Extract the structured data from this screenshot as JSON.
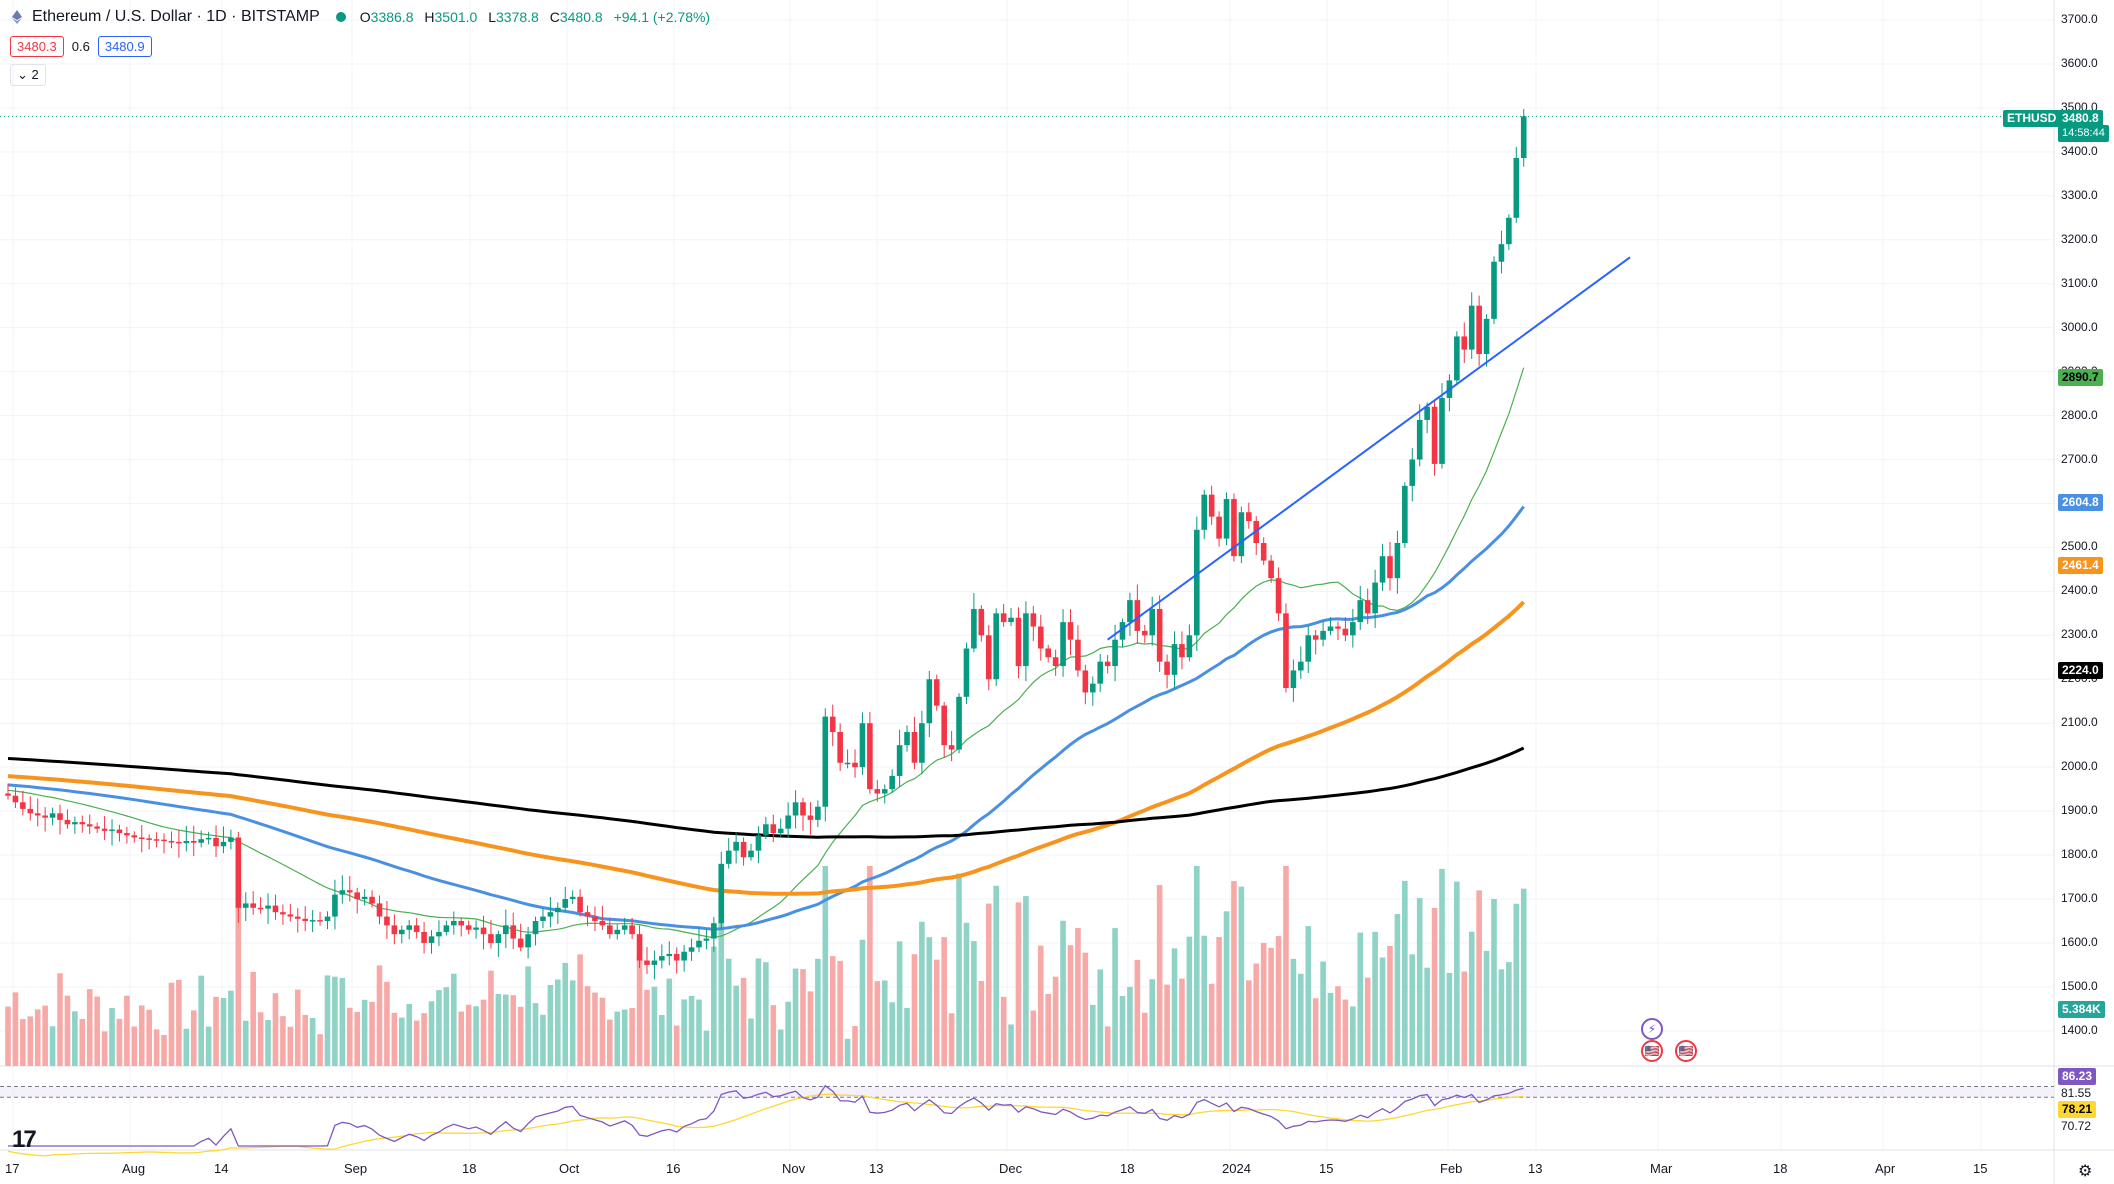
{
  "header": {
    "title": "Ethereum / U.S. Dollar · 1D · BITSTAMP",
    "ohlc": [
      {
        "k": "O",
        "v": "3386.8"
      },
      {
        "k": "H",
        "v": "3501.0"
      },
      {
        "k": "L",
        "v": "3378.8"
      },
      {
        "k": "C",
        "v": "3480.8"
      },
      {
        "k": "",
        "v": "+94.1 (+2.78%)"
      }
    ],
    "bid": "3480.3",
    "spread": "0.6",
    "ask": "3480.9",
    "indicators_toggle": "⌄ 2"
  },
  "price_axis": {
    "ticks": [
      "3700.0",
      "3600.0",
      "3500.0",
      "3400.0",
      "3300.0",
      "3200.0",
      "3100.0",
      "3000.0",
      "2900.0",
      "2800.0",
      "2700.0",
      "2600.0",
      "2500.0",
      "2400.0",
      "2300.0",
      "2200.0",
      "2100.0",
      "2000.0",
      "1900.0",
      "1800.0",
      "1700.0",
      "1600.0",
      "1500.0",
      "1400.0"
    ],
    "symbol_tag": "ETHUSD",
    "last_price": "3480.8",
    "countdown": "14:58:44",
    "ma_tags": [
      {
        "name": "ma-20",
        "value": "2890.7",
        "color": "#4caf50"
      },
      {
        "name": "ma-50",
        "value": "2604.8",
        "color": "#4a90e2"
      },
      {
        "name": "ma-100",
        "value": "2461.4",
        "color": "#f7941d"
      },
      {
        "name": "ma-200",
        "value": "2224.0",
        "color": "#000000"
      }
    ],
    "volume_tag": "5.384K"
  },
  "rsi_axis": {
    "rsi_value": "86.23",
    "level_upper": "81.55",
    "rsi_ma": "78.21",
    "level_lower": "70.72"
  },
  "time_axis": {
    "labels": [
      "17",
      "Aug",
      "14",
      "Sep",
      "18",
      "Oct",
      "16",
      "Nov",
      "13",
      "Dec",
      "18",
      "2024",
      "15",
      "Feb",
      "13",
      "Mar",
      "18",
      "Apr",
      "15"
    ]
  },
  "colors": {
    "up": "#089981",
    "down": "#f23645",
    "ma20": "#4caf50",
    "ma50": "#4a90e2",
    "ma100": "#f7941d",
    "ma200": "#000000",
    "rsi": "#7e57c2",
    "trendline": "#2962ff"
  },
  "icons": {
    "logo": "ethereum-icon",
    "tradingview": "tradingview-logo",
    "settings": "gear-icon",
    "event": "us-flag-icon",
    "bolt": "lightning-icon"
  },
  "chart_data": {
    "type": "candlestick",
    "title": "Ethereum / U.S. Dollar · 1D · BITSTAMP",
    "ylabel": "USD",
    "ylim": [
      1350,
      3750
    ],
    "start_close": 1940,
    "daily_closes": [
      1935,
      1920,
      1905,
      1895,
      1890,
      1885,
      1895,
      1880,
      1870,
      1875,
      1870,
      1865,
      1860,
      1855,
      1858,
      1850,
      1845,
      1840,
      1838,
      1836,
      1835,
      1832,
      1830,
      1827,
      1832,
      1828,
      1836,
      1839,
      1820,
      1830,
      1840,
      1680,
      1690,
      1680,
      1678,
      1685,
      1670,
      1665,
      1660,
      1655,
      1650,
      1652,
      1650,
      1660,
      1710,
      1720,
      1715,
      1700,
      1705,
      1690,
      1660,
      1640,
      1620,
      1630,
      1640,
      1625,
      1600,
      1615,
      1625,
      1640,
      1650,
      1640,
      1630,
      1635,
      1620,
      1600,
      1620,
      1640,
      1610,
      1590,
      1620,
      1650,
      1660,
      1670,
      1680,
      1700,
      1705,
      1670,
      1660,
      1650,
      1640,
      1620,
      1630,
      1640,
      1620,
      1560,
      1550,
      1560,
      1570,
      1575,
      1560,
      1580,
      1590,
      1605,
      1610,
      1645,
      1780,
      1810,
      1830,
      1795,
      1810,
      1845,
      1870,
      1850,
      1860,
      1890,
      1920,
      1890,
      1880,
      1910,
      2115,
      2080,
      2010,
      2010,
      2000,
      2100,
      1950,
      1940,
      1950,
      1980,
      2050,
      2080,
      2010,
      2100,
      2200,
      2140,
      2050,
      2040,
      2160,
      2270,
      2360,
      2300,
      2200,
      2350,
      2330,
      2340,
      2230,
      2350,
      2320,
      2270,
      2250,
      2230,
      2330,
      2290,
      2220,
      2170,
      2190,
      2240,
      2230,
      2290,
      2330,
      2380,
      2310,
      2300,
      2360,
      2240,
      2210,
      2280,
      2250,
      2300,
      2540,
      2620,
      2570,
      2520,
      2610,
      2480,
      2580,
      2560,
      2510,
      2470,
      2430,
      2350,
      2180,
      2220,
      2240,
      2300,
      2290,
      2310,
      2320,
      2315,
      2300,
      2330,
      2380,
      2350,
      2420,
      2480,
      2430,
      2510,
      2640,
      2700,
      2790,
      2820,
      2690,
      2840,
      2880,
      2980,
      2950,
      3050,
      2940,
      3020,
      3150,
      3190,
      3250,
      3386,
      3480.8
    ],
    "moving_averages": [
      {
        "name": "MA20",
        "last": 2890.7
      },
      {
        "name": "MA50",
        "last": 2604.8
      },
      {
        "name": "MA100",
        "last": 2461.4
      },
      {
        "name": "MA200",
        "last": 2224.0
      }
    ],
    "volume_last": "5.384K",
    "rsi": {
      "last": 86.23,
      "ma": 78.21,
      "upper": 81.55,
      "lower": 70.72
    }
  }
}
